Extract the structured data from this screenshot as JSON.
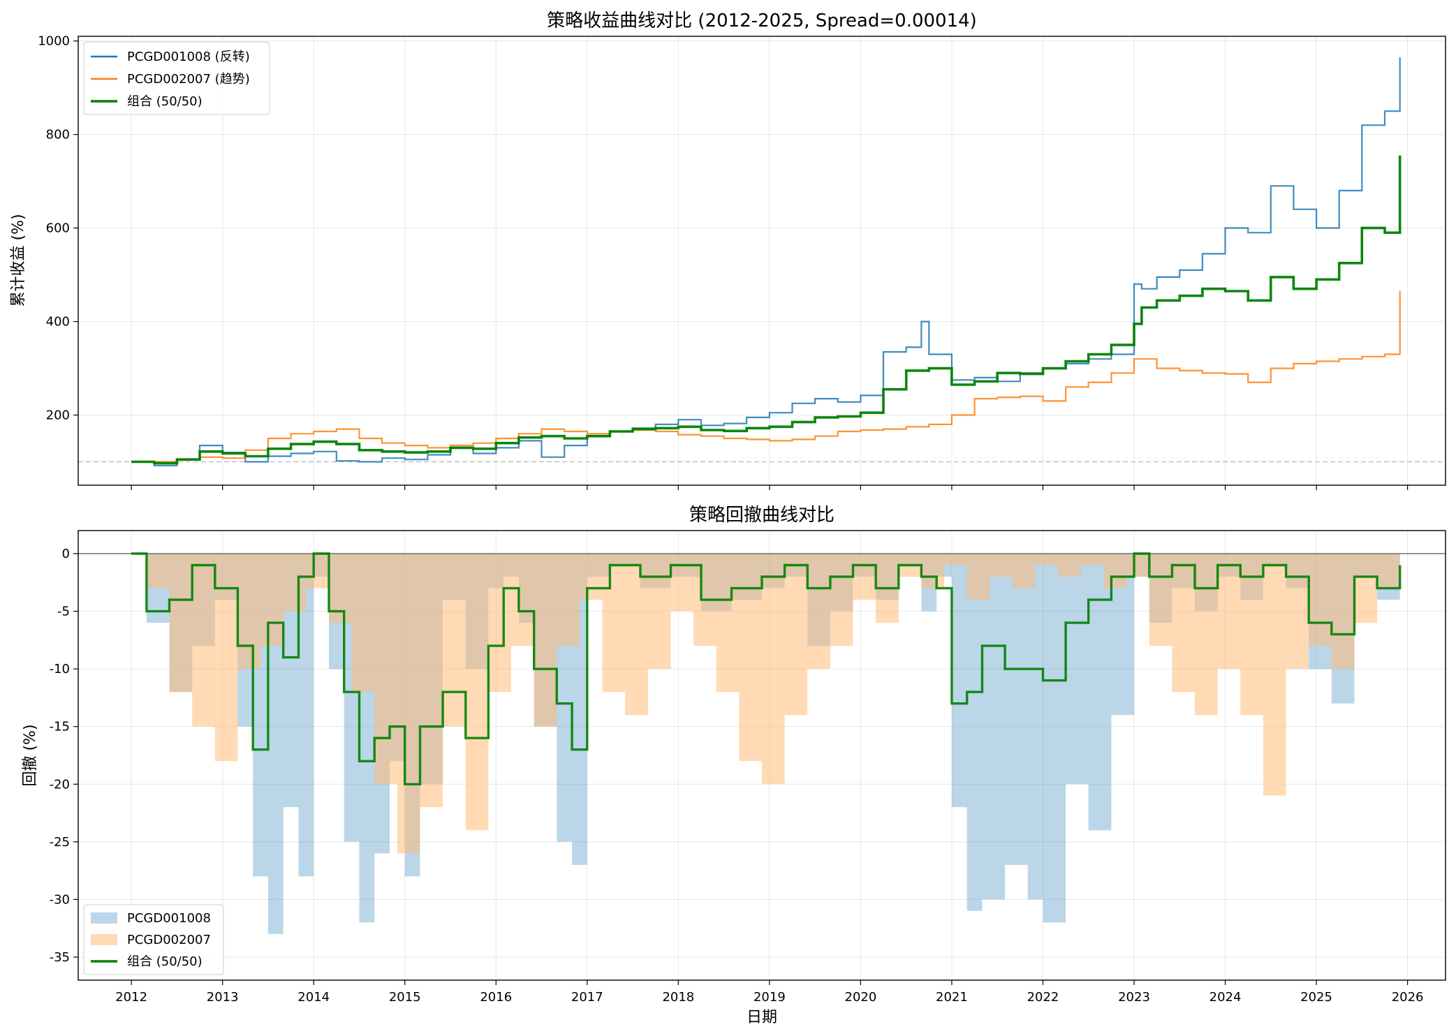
{
  "chart_data": [
    {
      "type": "line",
      "title": "策略收益曲线对比 (2012-2025, Spread=0.00014)",
      "xlabel": "",
      "ylabel": "累计收益 (%)",
      "xlim": [
        "2011-06",
        "2026-06"
      ],
      "ylim": [
        50,
        1010
      ],
      "yticks": [
        "200",
        "400",
        "600",
        "800",
        "1000"
      ],
      "reference_line": 100,
      "grid": true,
      "legend": "top-left",
      "series": [
        {
          "name": "PCGD001008 (反转)",
          "color": "#1f77b4",
          "x": [
            "2012-01",
            "2012-04",
            "2012-07",
            "2012-10",
            "2013-01",
            "2013-04",
            "2013-07",
            "2013-10",
            "2014-01",
            "2014-04",
            "2014-07",
            "2014-10",
            "2015-01",
            "2015-04",
            "2015-07",
            "2015-10",
            "2016-01",
            "2016-04",
            "2016-07",
            "2016-10",
            "2017-01",
            "2017-04",
            "2017-07",
            "2017-10",
            "2018-01",
            "2018-04",
            "2018-07",
            "2018-10",
            "2019-01",
            "2019-04",
            "2019-07",
            "2019-10",
            "2020-01",
            "2020-04",
            "2020-07",
            "2020-09",
            "2020-10",
            "2021-01",
            "2021-04",
            "2021-07",
            "2021-10",
            "2022-01",
            "2022-04",
            "2022-07",
            "2022-10",
            "2023-01",
            "2023-02",
            "2023-04",
            "2023-07",
            "2023-10",
            "2024-01",
            "2024-04",
            "2024-07",
            "2024-10",
            "2025-01",
            "2025-04",
            "2025-07",
            "2025-10",
            "2025-12"
          ],
          "y": [
            100,
            92,
            105,
            135,
            120,
            100,
            112,
            118,
            122,
            102,
            100,
            108,
            105,
            115,
            130,
            118,
            130,
            145,
            110,
            135,
            155,
            165,
            172,
            180,
            190,
            178,
            182,
            195,
            205,
            225,
            235,
            228,
            242,
            335,
            345,
            400,
            330,
            275,
            280,
            272,
            290,
            300,
            310,
            320,
            330,
            480,
            470,
            495,
            510,
            545,
            600,
            590,
            690,
            640,
            600,
            680,
            820,
            850,
            965
          ]
        },
        {
          "name": "PCGD002007 (趋势)",
          "color": "#ff7f0e",
          "x": [
            "2012-01",
            "2012-04",
            "2012-07",
            "2012-10",
            "2013-01",
            "2013-04",
            "2013-07",
            "2013-10",
            "2014-01",
            "2014-04",
            "2014-07",
            "2014-10",
            "2015-01",
            "2015-04",
            "2015-07",
            "2015-10",
            "2016-01",
            "2016-04",
            "2016-07",
            "2016-10",
            "2017-01",
            "2017-04",
            "2017-07",
            "2017-10",
            "2018-01",
            "2018-04",
            "2018-07",
            "2018-10",
            "2019-01",
            "2019-04",
            "2019-07",
            "2019-10",
            "2020-01",
            "2020-04",
            "2020-07",
            "2020-10",
            "2021-01",
            "2021-04",
            "2021-07",
            "2021-10",
            "2022-01",
            "2022-04",
            "2022-07",
            "2022-10",
            "2023-01",
            "2023-04",
            "2023-07",
            "2023-10",
            "2024-01",
            "2024-04",
            "2024-07",
            "2024-10",
            "2025-01",
            "2025-04",
            "2025-07",
            "2025-10",
            "2025-12"
          ],
          "y": [
            100,
            100,
            105,
            110,
            108,
            125,
            150,
            160,
            165,
            170,
            150,
            140,
            135,
            130,
            135,
            140,
            150,
            160,
            170,
            165,
            160,
            165,
            168,
            165,
            158,
            155,
            150,
            148,
            145,
            148,
            155,
            165,
            168,
            170,
            175,
            180,
            200,
            235,
            238,
            240,
            230,
            260,
            270,
            290,
            320,
            300,
            295,
            290,
            288,
            270,
            300,
            310,
            315,
            320,
            325,
            330,
            465
          ]
        },
        {
          "name": "组合 (50/50)",
          "color": "#008000",
          "x": [
            "2012-01",
            "2012-04",
            "2012-07",
            "2012-10",
            "2013-01",
            "2013-04",
            "2013-07",
            "2013-10",
            "2014-01",
            "2014-04",
            "2014-07",
            "2014-10",
            "2015-01",
            "2015-04",
            "2015-07",
            "2015-10",
            "2016-01",
            "2016-04",
            "2016-07",
            "2016-10",
            "2017-01",
            "2017-04",
            "2017-07",
            "2017-10",
            "2018-01",
            "2018-04",
            "2018-07",
            "2018-10",
            "2019-01",
            "2019-04",
            "2019-07",
            "2019-10",
            "2020-01",
            "2020-04",
            "2020-07",
            "2020-10",
            "2021-01",
            "2021-04",
            "2021-07",
            "2021-10",
            "2022-01",
            "2022-04",
            "2022-07",
            "2022-10",
            "2023-01",
            "2023-02",
            "2023-04",
            "2023-07",
            "2023-10",
            "2024-01",
            "2024-04",
            "2024-07",
            "2024-10",
            "2025-01",
            "2025-04",
            "2025-07",
            "2025-10",
            "2025-12"
          ],
          "y": [
            100,
            97,
            105,
            122,
            118,
            112,
            128,
            138,
            143,
            138,
            125,
            122,
            120,
            122,
            130,
            128,
            140,
            152,
            155,
            150,
            155,
            165,
            170,
            172,
            175,
            168,
            166,
            172,
            175,
            185,
            195,
            197,
            205,
            255,
            295,
            300,
            265,
            272,
            290,
            288,
            300,
            315,
            330,
            350,
            395,
            430,
            445,
            455,
            470,
            465,
            445,
            495,
            470,
            490,
            525,
            600,
            590,
            755
          ]
        }
      ]
    },
    {
      "type": "area",
      "title": "策略回撤曲线对比",
      "xlabel": "日期",
      "ylabel": "回撤 (%)",
      "xlim": [
        "2011-06",
        "2026-06"
      ],
      "ylim": [
        -37,
        2
      ],
      "xticks": [
        "2012",
        "2013",
        "2014",
        "2015",
        "2016",
        "2017",
        "2018",
        "2019",
        "2020",
        "2021",
        "2022",
        "2023",
        "2024",
        "2025",
        "2026"
      ],
      "yticks": [
        "0",
        "-5",
        "-10",
        "-15",
        "-20",
        "-25",
        "-30",
        "-35"
      ],
      "grid": true,
      "legend": "bottom-left",
      "series": [
        {
          "name": "PCGD001008",
          "color": "#1f77b4",
          "style": "fill",
          "x": [
            "2012-01",
            "2012-03",
            "2012-06",
            "2012-09",
            "2012-12",
            "2013-03",
            "2013-05",
            "2013-07",
            "2013-09",
            "2013-11",
            "2014-01",
            "2014-03",
            "2014-05",
            "2014-07",
            "2014-09",
            "2014-11",
            "2015-01",
            "2015-03",
            "2015-06",
            "2015-09",
            "2015-12",
            "2016-02",
            "2016-04",
            "2016-06",
            "2016-09",
            "2016-11",
            "2017-01",
            "2017-04",
            "2017-08",
            "2017-12",
            "2018-04",
            "2018-08",
            "2018-12",
            "2019-03",
            "2019-06",
            "2019-09",
            "2019-12",
            "2020-03",
            "2020-06",
            "2020-09",
            "2020-11",
            "2021-01",
            "2021-03",
            "2021-05",
            "2021-08",
            "2021-11",
            "2022-01",
            "2022-04",
            "2022-07",
            "2022-10",
            "2023-01",
            "2023-03",
            "2023-06",
            "2023-09",
            "2023-12",
            "2024-03",
            "2024-06",
            "2024-09",
            "2024-12",
            "2025-03",
            "2025-06",
            "2025-09",
            "2025-12"
          ],
          "y": [
            0,
            -6,
            -12,
            -8,
            -4,
            -15,
            -28,
            -33,
            -22,
            -28,
            -2,
            -10,
            -25,
            -32,
            -26,
            -18,
            -28,
            -20,
            -4,
            -10,
            -3,
            -2,
            -6,
            -15,
            -25,
            -27,
            -2,
            -1,
            -3,
            -2,
            -5,
            -4,
            -3,
            -2,
            -8,
            -5,
            -2,
            -4,
            -1,
            -5,
            -2,
            -22,
            -31,
            -30,
            -27,
            -30,
            -32,
            -20,
            -24,
            -14,
            -2,
            -6,
            -3,
            -5,
            -2,
            -4,
            -1,
            -3,
            -10,
            -13,
            -2,
            -4,
            -1
          ]
        },
        {
          "name": "PCGD002007",
          "color": "#ffbb78",
          "style": "fill",
          "x": [
            "2012-01",
            "2012-03",
            "2012-06",
            "2012-09",
            "2012-12",
            "2013-03",
            "2013-06",
            "2013-09",
            "2013-12",
            "2014-03",
            "2014-06",
            "2014-09",
            "2014-12",
            "2015-03",
            "2015-06",
            "2015-09",
            "2015-12",
            "2016-03",
            "2016-06",
            "2016-09",
            "2016-12",
            "2017-03",
            "2017-06",
            "2017-09",
            "2017-12",
            "2018-03",
            "2018-06",
            "2018-09",
            "2018-12",
            "2019-03",
            "2019-06",
            "2019-09",
            "2019-12",
            "2020-03",
            "2020-06",
            "2020-09",
            "2020-12",
            "2021-03",
            "2021-06",
            "2021-09",
            "2021-12",
            "2022-03",
            "2022-06",
            "2022-09",
            "2022-12",
            "2023-03",
            "2023-06",
            "2023-09",
            "2023-12",
            "2024-03",
            "2024-06",
            "2024-09",
            "2024-12",
            "2025-03",
            "2025-06",
            "2025-09",
            "2025-12"
          ],
          "y": [
            0,
            -3,
            -12,
            -15,
            -18,
            -10,
            -8,
            -5,
            -3,
            -6,
            -12,
            -20,
            -26,
            -22,
            -15,
            -24,
            -12,
            -8,
            -15,
            -8,
            -4,
            -12,
            -14,
            -10,
            -5,
            -8,
            -12,
            -18,
            -20,
            -14,
            -10,
            -8,
            -4,
            -6,
            -2,
            -3,
            -1,
            -4,
            -2,
            -3,
            -1,
            -2,
            -1,
            -3,
            -2,
            -8,
            -12,
            -14,
            -10,
            -14,
            -21,
            -10,
            -8,
            -10,
            -6,
            -3,
            -1
          ]
        },
        {
          "name": "组合 (50/50)",
          "color": "#008000",
          "style": "line",
          "x": [
            "2012-01",
            "2012-03",
            "2012-06",
            "2012-09",
            "2012-12",
            "2013-03",
            "2013-05",
            "2013-07",
            "2013-09",
            "2013-11",
            "2014-01",
            "2014-03",
            "2014-05",
            "2014-07",
            "2014-09",
            "2014-11",
            "2015-01",
            "2015-03",
            "2015-06",
            "2015-09",
            "2015-12",
            "2016-02",
            "2016-04",
            "2016-06",
            "2016-09",
            "2016-11",
            "2017-01",
            "2017-04",
            "2017-08",
            "2017-12",
            "2018-04",
            "2018-08",
            "2018-12",
            "2019-03",
            "2019-06",
            "2019-09",
            "2019-12",
            "2020-03",
            "2020-06",
            "2020-09",
            "2020-11",
            "2021-01",
            "2021-03",
            "2021-05",
            "2021-08",
            "2021-11",
            "2022-01",
            "2022-04",
            "2022-07",
            "2022-10",
            "2023-01",
            "2023-03",
            "2023-06",
            "2023-09",
            "2023-12",
            "2024-03",
            "2024-06",
            "2024-09",
            "2024-12",
            "2025-03",
            "2025-06",
            "2025-09",
            "2025-12"
          ],
          "y": [
            0,
            -5,
            -4,
            -1,
            -3,
            -8,
            -17,
            -6,
            -9,
            -2,
            0,
            -5,
            -12,
            -18,
            -16,
            -15,
            -20,
            -15,
            -12,
            -16,
            -8,
            -3,
            -5,
            -10,
            -13,
            -17,
            -3,
            -1,
            -2,
            -1,
            -4,
            -3,
            -2,
            -1,
            -3,
            -2,
            -1,
            -3,
            -1,
            -2,
            -3,
            -13,
            -12,
            -8,
            -10,
            -10,
            -11,
            -6,
            -4,
            -2,
            0,
            -2,
            -1,
            -3,
            -1,
            -2,
            -1,
            -2,
            -6,
            -7,
            -2,
            -3,
            -1
          ]
        }
      ]
    }
  ]
}
